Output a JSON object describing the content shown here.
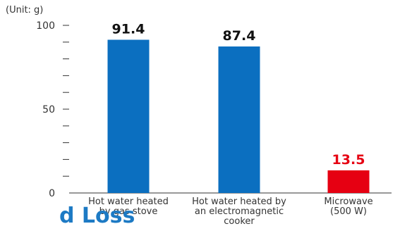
{
  "colors": {
    "default_bar": "#0b6fc0",
    "highlight_bar": "#e60012",
    "heading": "#1d7ac4",
    "axis": "#333333"
  },
  "heading_fragment": "d Loss",
  "chart_data": {
    "type": "bar",
    "title": "",
    "unit_label": "(Unit: g)",
    "ylim": [
      0,
      100
    ],
    "y_ticks_labeled": [
      0,
      50,
      100
    ],
    "y_tick_step": 10,
    "grid": false,
    "categories": [
      [
        "Hot water heated",
        "by gas stove"
      ],
      [
        "Hot water heated by",
        "an electromagnetic",
        "cooker"
      ],
      [
        "Microwave",
        "(500 W)"
      ]
    ],
    "values": [
      91.4,
      87.4,
      13.5
    ],
    "value_labels": [
      "91.4",
      "87.4",
      "13.5"
    ],
    "highlight": [
      false,
      false,
      true
    ]
  }
}
